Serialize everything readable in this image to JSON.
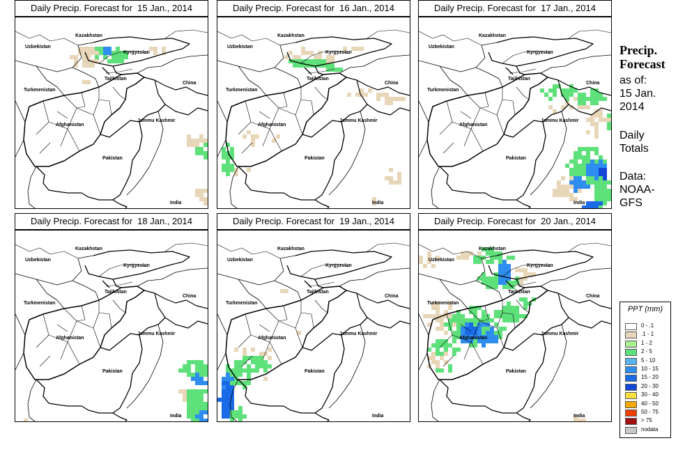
{
  "panels": [
    {
      "title": "Daily Precip. Forecast for  15 Jan., 2014",
      "pattern": "p15"
    },
    {
      "title": "Daily Precip. Forecast for  16 Jan., 2014",
      "pattern": "p16"
    },
    {
      "title": "Daily Precip. Forecast for  17 Jan., 2014",
      "pattern": "p17"
    },
    {
      "title": "Daily Precip. Forecast for  18 Jan., 2014",
      "pattern": "p18"
    },
    {
      "title": "Daily Precip. Forecast for  19 Jan., 2014",
      "pattern": "p19"
    },
    {
      "title": "Daily Precip. Forecast for  20 Jan., 2014",
      "pattern": "p20"
    }
  ],
  "map_labels": {
    "kazakhstan": "Kazakhstan",
    "uzbekistan": "Uzbekistan",
    "kyrgyzstan": "Kyrgyzstan",
    "tajikistan": "Tajikistan",
    "turkmenistan": "Turkmenistan",
    "china": "China",
    "afghanistan": "Afghanistan",
    "jammu_kashmir": "Jammu Kashmir",
    "pakistan": "Pakistan",
    "india": "India"
  },
  "sidebar": {
    "title_line1": "Precip.",
    "title_line2": "Forecast",
    "asof_line1": "as of:",
    "asof_line2": "15 Jan.",
    "asof_line3": "2014",
    "daily_line1": "Daily",
    "daily_line2": "Totals",
    "data_line1": "Data:",
    "data_line2": "NOAA-",
    "data_line3": "GFS"
  },
  "legend": {
    "title": "PPT (mm)",
    "items": [
      {
        "label": "0 - .1",
        "color": "#ffffff"
      },
      {
        "label": ".1 - 1",
        "color": "#e8d6b8"
      },
      {
        "label": "1 - 2",
        "color": "#a8f090"
      },
      {
        "label": "2 - 5",
        "color": "#5ee07a"
      },
      {
        "label": "5 - 10",
        "color": "#5ab4f0"
      },
      {
        "label": "10 - 15",
        "color": "#2e8ef0"
      },
      {
        "label": "15 - 20",
        "color": "#1a6ae8"
      },
      {
        "label": "20 - 30",
        "color": "#1446d8"
      },
      {
        "label": "30 - 40",
        "color": "#f8e040"
      },
      {
        "label": "40 - 50",
        "color": "#f8a800"
      },
      {
        "label": "50 - 75",
        "color": "#f04000"
      },
      {
        "label": "> 75",
        "color": "#a01010"
      },
      {
        "label": "nodata",
        "color": "#c8c8c8"
      }
    ]
  }
}
